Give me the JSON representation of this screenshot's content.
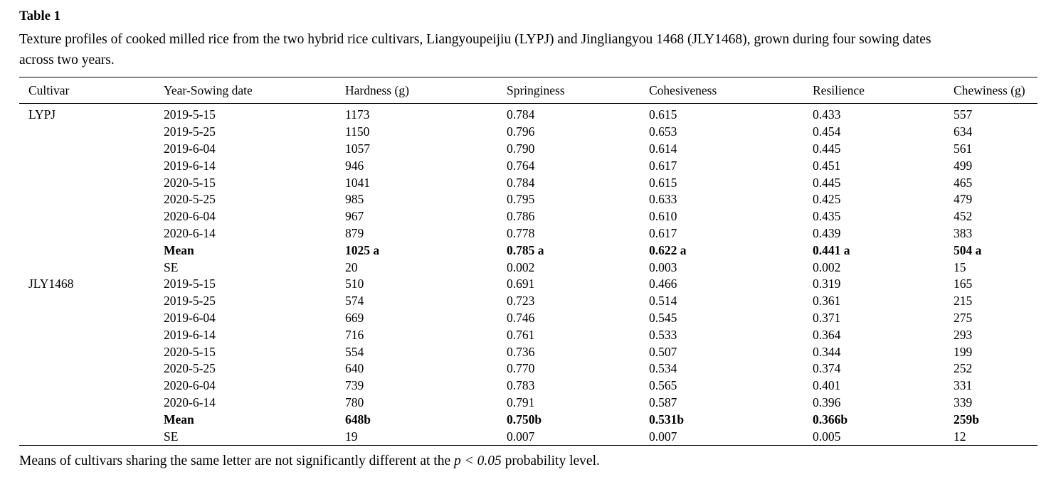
{
  "title": "Table 1",
  "caption": {
    "lines": [
      "Texture profiles of cooked milled rice from the two hybrid rice cultivars, Liangyoupeijiu (LYPJ) and Jingliangyou 1468 (JLY1468), grown during four sowing dates",
      "across two years."
    ]
  },
  "table": {
    "columns": [
      "Cultivar",
      "Year-Sowing date",
      "Hardness (g)",
      "Springiness",
      "Cohesiveness",
      "Resilience",
      "Chewiness (g)"
    ],
    "rows": [
      {
        "cells": [
          "LYPJ",
          "2019-5-15",
          "1173",
          "0.784",
          "0.615",
          "0.433",
          "557"
        ],
        "bold": false
      },
      {
        "cells": [
          "",
          "2019-5-25",
          "1150",
          "0.796",
          "0.653",
          "0.454",
          "634"
        ],
        "bold": false
      },
      {
        "cells": [
          "",
          "2019-6-04",
          "1057",
          "0.790",
          "0.614",
          "0.445",
          "561"
        ],
        "bold": false
      },
      {
        "cells": [
          "",
          "2019-6-14",
          "946",
          "0.764",
          "0.617",
          "0.451",
          "499"
        ],
        "bold": false
      },
      {
        "cells": [
          "",
          "2020-5-15",
          "1041",
          "0.784",
          "0.615",
          "0.445",
          "465"
        ],
        "bold": false
      },
      {
        "cells": [
          "",
          "2020-5-25",
          "985",
          "0.795",
          "0.633",
          "0.425",
          "479"
        ],
        "bold": false
      },
      {
        "cells": [
          "",
          "2020-6-04",
          "967",
          "0.786",
          "0.610",
          "0.435",
          "452"
        ],
        "bold": false
      },
      {
        "cells": [
          "",
          "2020-6-14",
          "879",
          "0.778",
          "0.617",
          "0.439",
          "383"
        ],
        "bold": false
      },
      {
        "cells": [
          "",
          "Mean",
          "1025 a",
          "0.785 a",
          "0.622 a",
          "0.441 a",
          "504 a"
        ],
        "bold": true
      },
      {
        "cells": [
          "",
          "SE",
          "20",
          "0.002",
          "0.003",
          "0.002",
          "15"
        ],
        "bold": false
      },
      {
        "cells": [
          "JLY1468",
          "2019-5-15",
          "510",
          "0.691",
          "0.466",
          "0.319",
          "165"
        ],
        "bold": false
      },
      {
        "cells": [
          "",
          "2019-5-25",
          "574",
          "0.723",
          "0.514",
          "0.361",
          "215"
        ],
        "bold": false
      },
      {
        "cells": [
          "",
          "2019-6-04",
          "669",
          "0.746",
          "0.545",
          "0.371",
          "275"
        ],
        "bold": false
      },
      {
        "cells": [
          "",
          "2019-6-14",
          "716",
          "0.761",
          "0.533",
          "0.364",
          "293"
        ],
        "bold": false
      },
      {
        "cells": [
          "",
          "2020-5-15",
          "554",
          "0.736",
          "0.507",
          "0.344",
          "199"
        ],
        "bold": false
      },
      {
        "cells": [
          "",
          "2020-5-25",
          "640",
          "0.770",
          "0.534",
          "0.374",
          "252"
        ],
        "bold": false
      },
      {
        "cells": [
          "",
          "2020-6-04",
          "739",
          "0.783",
          "0.565",
          "0.401",
          "331"
        ],
        "bold": false
      },
      {
        "cells": [
          "",
          "2020-6-14",
          "780",
          "0.791",
          "0.587",
          "0.396",
          "339"
        ],
        "bold": false
      },
      {
        "cells": [
          "",
          "Mean",
          "648b",
          "0.750b",
          "0.531b",
          "0.366b",
          "259b"
        ],
        "bold": true
      },
      {
        "cells": [
          "",
          "SE",
          "19",
          "0.007",
          "0.007",
          "0.005",
          "12"
        ],
        "bold": false
      }
    ]
  },
  "footnote": {
    "text_before": "Means of cultivars sharing the same letter are not significantly different at the ",
    "italic": "p < 0.05",
    "text_after": " probability level."
  }
}
